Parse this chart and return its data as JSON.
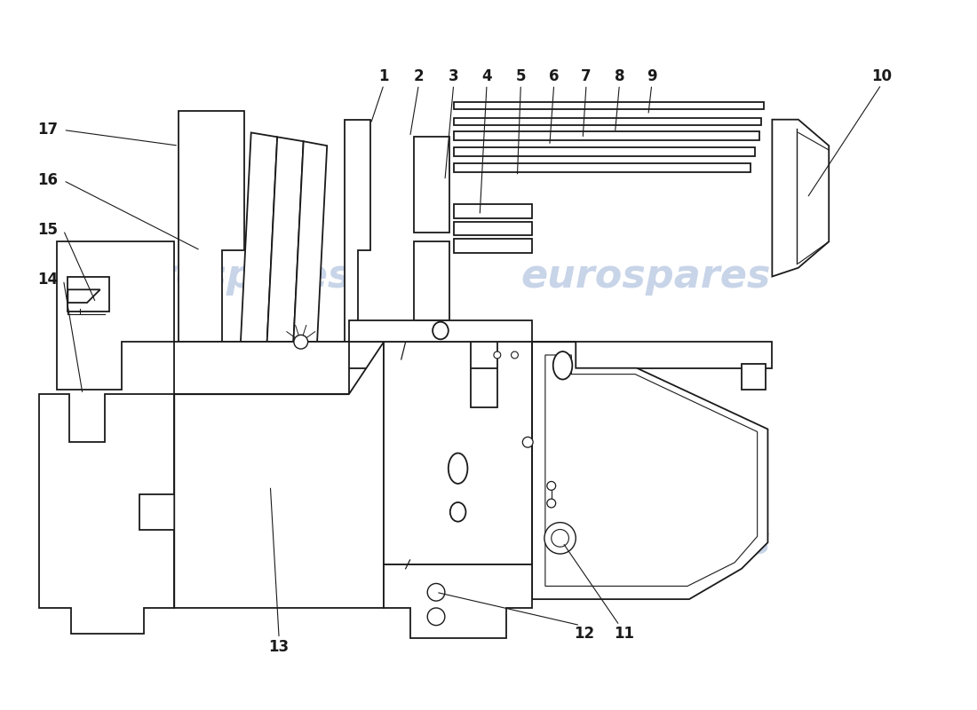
{
  "background_color": "#ffffff",
  "line_color": "#1a1a1a",
  "watermark_color": "#c8d4e8",
  "watermark_text": "eurospares",
  "lw": 1.3,
  "font_size": 12,
  "font_weight": "bold"
}
